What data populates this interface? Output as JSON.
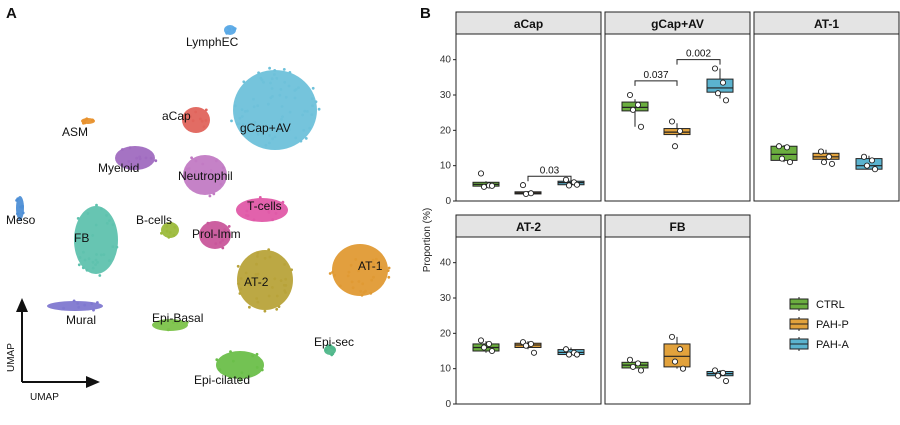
{
  "panels_labels": {
    "a": "A",
    "b": "B"
  },
  "umap": {
    "axis_x": "UMAP",
    "axis_y": "UMAP",
    "clusters": [
      {
        "label": "LymphEC",
        "color": "#5AA9E6"
      },
      {
        "label": "aCap",
        "color": "#E0645C"
      },
      {
        "label": "gCap+AV",
        "color": "#6EC1DA"
      },
      {
        "label": "ASM",
        "color": "#E8922E"
      },
      {
        "label": "Myeloid",
        "color": "#A06BC0"
      },
      {
        "label": "Neutrophil",
        "color": "#C27BC4"
      },
      {
        "label": "T-cells",
        "color": "#E05AA8"
      },
      {
        "label": "Meso",
        "color": "#4E8FD6"
      },
      {
        "label": "FB",
        "color": "#5FC2AE"
      },
      {
        "label": "B-cells",
        "color": "#9CBA3C"
      },
      {
        "label": "Prol-Imm",
        "color": "#C9579B"
      },
      {
        "label": "AT-2",
        "color": "#B8A33A"
      },
      {
        "label": "AT-1",
        "color": "#E09A34"
      },
      {
        "label": "Mural",
        "color": "#7F78D0"
      },
      {
        "label": "Epi-Basal",
        "color": "#7CC34A"
      },
      {
        "label": "Epi-sec",
        "color": "#4FB78A"
      },
      {
        "label": "Epi-cilated",
        "color": "#6BBF4A"
      }
    ]
  },
  "chart_data": {
    "type": "boxplot",
    "ylabel": "Proportion (%)",
    "ylim": [
      0,
      45
    ],
    "yticks": [
      0,
      10,
      20,
      30,
      40
    ],
    "groups": [
      "CTRL",
      "PAH-P",
      "PAH-A"
    ],
    "colors": {
      "CTRL": "#6BAE3F",
      "PAH-P": "#E2A23C",
      "PAH-A": "#5BB3CF"
    },
    "legend_position": "right",
    "panels": [
      {
        "title": "aCap",
        "boxes": [
          {
            "group": "CTRL",
            "min": 4.0,
            "q1": 4.2,
            "median": 4.7,
            "q3": 5.3,
            "max": 5.6,
            "points": [
              7.8,
              4.4,
              4.0,
              4.3
            ]
          },
          {
            "group": "PAH-P",
            "min": 1.8,
            "q1": 2.0,
            "median": 2.3,
            "q3": 2.6,
            "max": 2.8,
            "points": [
              4.5,
              2.2,
              2.0
            ]
          },
          {
            "group": "PAH-A",
            "min": 4.3,
            "q1": 4.6,
            "median": 5.2,
            "q3": 5.6,
            "max": 5.9,
            "points": [
              6.0,
              5.3,
              4.4,
              4.6
            ]
          }
        ],
        "brackets": [
          {
            "from": "PAH-P",
            "to": "PAH-A",
            "label": "0.03",
            "y": 7.0
          }
        ]
      },
      {
        "title": "gCap+AV",
        "boxes": [
          {
            "group": "CTRL",
            "min": 21.0,
            "q1": 25.5,
            "median": 26.5,
            "q3": 28.0,
            "max": 28.8,
            "points": [
              30.0,
              27.2,
              25.8,
              21.0
            ]
          },
          {
            "group": "PAH-P",
            "min": 18.0,
            "q1": 18.8,
            "median": 19.5,
            "q3": 20.5,
            "max": 22.0,
            "points": [
              22.5,
              19.8,
              15.5
            ]
          },
          {
            "group": "PAH-A",
            "min": 29.0,
            "q1": 30.8,
            "median": 32.0,
            "q3": 34.5,
            "max": 37.5,
            "points": [
              37.5,
              33.5,
              30.5,
              28.5
            ]
          }
        ],
        "brackets": [
          {
            "from": "CTRL",
            "to": "PAH-P",
            "label": "0.037",
            "y": 34.0
          },
          {
            "from": "PAH-P",
            "to": "PAH-A",
            "label": "0.002",
            "y": 40.0
          }
        ]
      },
      {
        "title": "AT-1",
        "boxes": [
          {
            "group": "CTRL",
            "min": 11.0,
            "q1": 11.5,
            "median": 13.2,
            "q3": 15.5,
            "max": 15.8,
            "points": [
              15.5,
              15.2,
              12.0,
              11.0
            ]
          },
          {
            "group": "PAH-P",
            "min": 11.0,
            "q1": 11.8,
            "median": 12.5,
            "q3": 13.5,
            "max": 14.5,
            "points": [
              14.0,
              12.5,
              11.0,
              10.5
            ]
          },
          {
            "group": "PAH-A",
            "min": 9.0,
            "q1": 9.0,
            "median": 10.0,
            "q3": 12.0,
            "max": 12.8,
            "points": [
              12.5,
              11.5,
              10.0,
              9.0
            ]
          }
        ],
        "brackets": []
      },
      {
        "title": "AT-2",
        "boxes": [
          {
            "group": "CTRL",
            "min": 14.5,
            "q1": 15.0,
            "median": 16.0,
            "q3": 17.0,
            "max": 17.8,
            "points": [
              18.0,
              17.0,
              16.0,
              15.0
            ]
          },
          {
            "group": "PAH-P",
            "min": 15.5,
            "q1": 16.0,
            "median": 16.7,
            "q3": 17.2,
            "max": 17.8,
            "points": [
              17.5,
              17.0,
              16.5,
              14.5
            ]
          },
          {
            "group": "PAH-A",
            "min": 13.5,
            "q1": 14.0,
            "median": 14.6,
            "q3": 15.4,
            "max": 16.0,
            "points": [
              15.5,
              14.5,
              14.0,
              14.0
            ]
          }
        ],
        "brackets": []
      },
      {
        "title": "FB",
        "boxes": [
          {
            "group": "CTRL",
            "min": 10.0,
            "q1": 10.2,
            "median": 11.0,
            "q3": 11.8,
            "max": 12.0,
            "points": [
              12.5,
              11.5,
              10.5,
              9.5
            ]
          },
          {
            "group": "PAH-P",
            "min": 10.0,
            "q1": 10.5,
            "median": 13.5,
            "q3": 17.0,
            "max": 19.0,
            "points": [
              19.0,
              15.5,
              12.0,
              10.0
            ]
          },
          {
            "group": "PAH-A",
            "min": 8.0,
            "q1": 8.0,
            "median": 8.6,
            "q3": 9.2,
            "max": 9.6,
            "points": [
              9.5,
              8.8,
              8.0,
              6.5
            ]
          }
        ],
        "brackets": []
      }
    ]
  }
}
